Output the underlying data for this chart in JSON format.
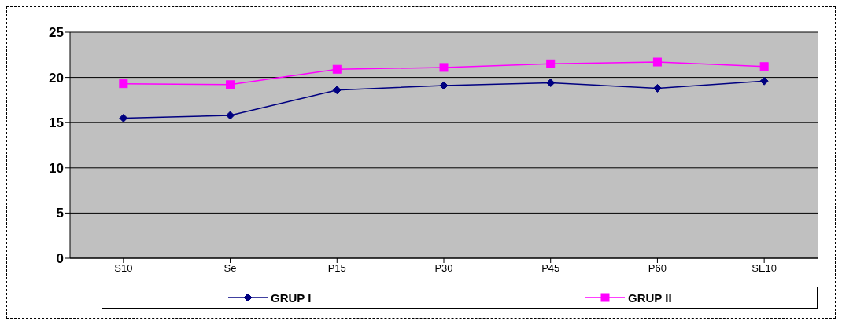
{
  "chart_data": {
    "type": "line",
    "categories": [
      "S10",
      "Se",
      "P15",
      "P30",
      "P45",
      "P60",
      "SE10"
    ],
    "series": [
      {
        "name": "GRUP I",
        "color": "#000080",
        "marker": "diamond",
        "values": [
          15.5,
          15.8,
          18.6,
          19.1,
          19.4,
          18.8,
          19.6
        ]
      },
      {
        "name": "GRUP II",
        "color": "#ff00ff",
        "marker": "square",
        "values": [
          19.3,
          19.2,
          20.9,
          21.1,
          21.5,
          21.7,
          21.2
        ]
      }
    ],
    "ylim": [
      0,
      25
    ],
    "yticks": [
      0,
      5,
      10,
      15,
      20,
      25
    ],
    "grid": "y",
    "legend": "bottom"
  }
}
